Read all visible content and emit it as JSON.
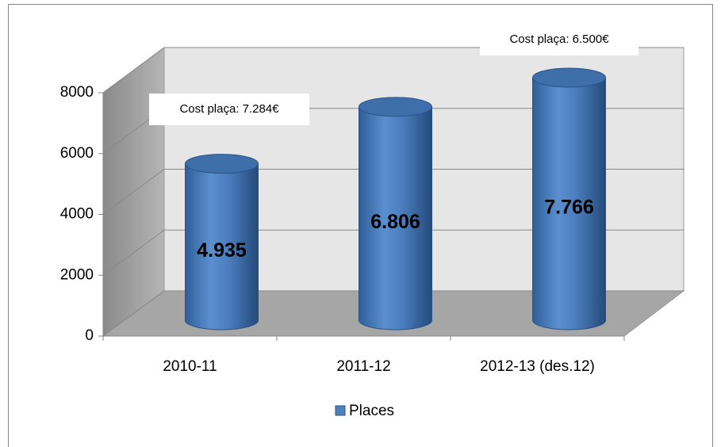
{
  "chart_data": {
    "type": "bar",
    "categories": [
      "2010-11",
      "2011-12",
      "2012-13 (des.12)"
    ],
    "series": [
      {
        "name": "Places",
        "color": "#4f81bd",
        "values": [
          4935,
          6806,
          7766
        ],
        "value_labels": [
          "4.935",
          "6.806",
          "7.766"
        ]
      }
    ],
    "ylim": [
      0,
      8000
    ],
    "yticks": [
      0,
      2000,
      4000,
      6000,
      8000
    ],
    "grid": true,
    "annotations": [
      "Cost plaça: 7.284€",
      "Cost plaça: 6.500€"
    ],
    "legend": "bottom"
  }
}
